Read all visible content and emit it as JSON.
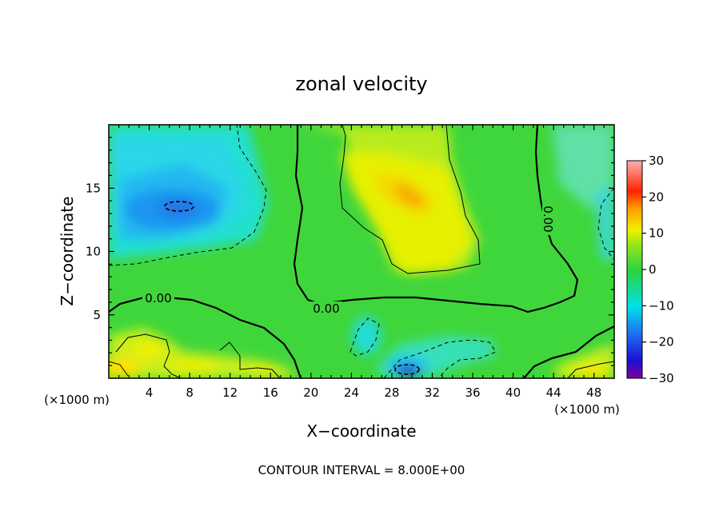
{
  "chart_data": {
    "type": "heatmap",
    "title": "zonal velocity",
    "xlabel": "X−coordinate",
    "ylabel": "Z−coordinate",
    "x_unit_left": "(×1000 m)",
    "x_unit_right": "(×1000 m)",
    "footer": "CONTOUR INTERVAL = 8.000E+00",
    "xlim": [
      0,
      50
    ],
    "ylim": [
      0,
      20
    ],
    "x_ticks": [
      4,
      8,
      12,
      16,
      20,
      24,
      28,
      32,
      36,
      40,
      44,
      48
    ],
    "x_tick_labels": [
      "4",
      "8",
      "12",
      "16",
      "20",
      "24",
      "28",
      "32",
      "36",
      "40",
      "44",
      "48"
    ],
    "y_ticks": [
      5,
      10,
      15
    ],
    "y_tick_labels": [
      "5",
      "10",
      "15"
    ],
    "colorbar": {
      "range": [
        -30,
        30
      ],
      "ticks": [
        30,
        20,
        10,
        0,
        -10,
        -20,
        -30
      ],
      "tick_labels": [
        "30",
        "20",
        "10",
        "0",
        "−10",
        "−20",
        "−30"
      ],
      "colors": [
        "#ff9a9a",
        "#ff1a00",
        "#ff9900",
        "#f0f000",
        "#3ad43a",
        "#00e0e0",
        "#2090ff",
        "#1020e0",
        "#8000a0"
      ]
    },
    "contour_labels": [
      "0.00",
      "0.00",
      "0.00"
    ],
    "features": [
      {
        "x": 6,
        "z": 13.5,
        "value": -16
      },
      {
        "x": 28,
        "z": 14.5,
        "value": 13
      },
      {
        "x": 29.5,
        "z": 0.5,
        "value": -22
      },
      {
        "x": 3,
        "z": 2.5,
        "value": 6
      },
      {
        "x": 48,
        "z": 0.5,
        "value": 8
      }
    ]
  }
}
